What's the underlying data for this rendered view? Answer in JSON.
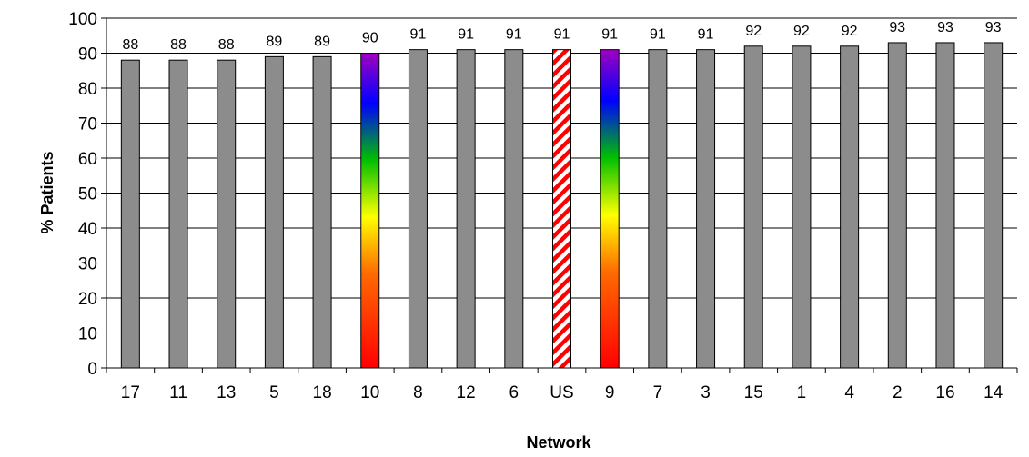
{
  "chart_data": {
    "type": "bar",
    "xlabel": "Network",
    "ylabel": "% Patients",
    "ylim": [
      0,
      100
    ],
    "yticks": [
      0,
      10,
      20,
      30,
      40,
      50,
      60,
      70,
      80,
      90,
      100
    ],
    "grid": true,
    "categories": [
      "17",
      "11",
      "13",
      "5",
      "18",
      "10",
      "8",
      "12",
      "6",
      "US",
      "9",
      "7",
      "3",
      "15",
      "1",
      "4",
      "2",
      "16",
      "14"
    ],
    "values": [
      88,
      88,
      88,
      89,
      89,
      90,
      91,
      91,
      91,
      91,
      91,
      91,
      91,
      92,
      92,
      92,
      93,
      93,
      93
    ],
    "data_labels": [
      "88",
      "88",
      "88",
      "89",
      "89",
      "90",
      "91",
      "91",
      "91",
      "91",
      "91",
      "91",
      "91",
      "92",
      "92",
      "92",
      "93",
      "93",
      "93"
    ],
    "bar_colors": {
      "default": "#8c8c8c",
      "highlight_gradient": [
        "#e60000",
        "#ff6600",
        "#ffff00",
        "#00cc00",
        "#0000ff",
        "#9900cc"
      ],
      "highlight_categories": [
        "10",
        "9"
      ],
      "us_hatch": [
        "#ff0000",
        "#ffffff"
      ],
      "us_category": "US"
    }
  }
}
